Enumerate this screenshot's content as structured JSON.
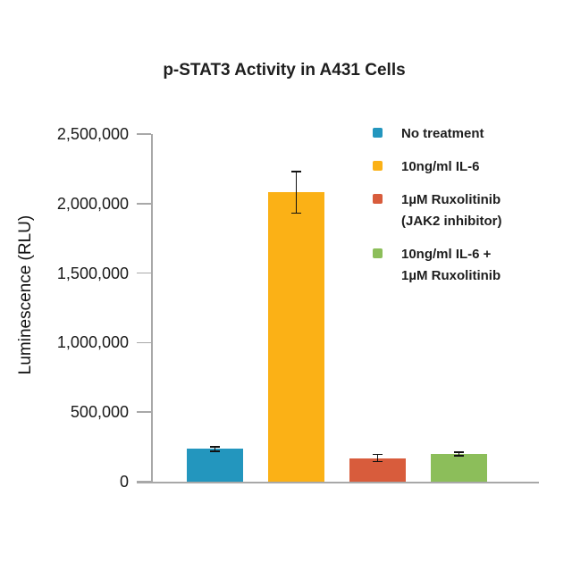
{
  "chart_data": {
    "type": "bar",
    "title": "p-STAT3 Activity in A431 Cells",
    "xlabel": "",
    "ylabel": "Luminescence (RLU)",
    "ylim": [
      0,
      2500000
    ],
    "yticks": [
      0,
      500000,
      1000000,
      1500000,
      2000000,
      2500000
    ],
    "ytick_labels": [
      "0",
      "500,000",
      "1,000,000",
      "1,500,000",
      "2,000,000",
      "2,500,000"
    ],
    "grid": false,
    "legend_position": "upper right",
    "categories": [
      "No treatment",
      "10ng/ml IL-6",
      "1µM Ruxolitinib (JAK2 inhibitor)",
      "10ng/ml IL-6 + 1µM Ruxolitinib"
    ],
    "bars": [
      {
        "id": "no-treatment",
        "legend_lines": [
          "No treatment"
        ],
        "value": 235000,
        "error": 15000,
        "color": "#2396be"
      },
      {
        "id": "il6",
        "legend_lines": [
          "10ng/ml IL-6"
        ],
        "value": 2080000,
        "error": 150000,
        "color": "#fbb116"
      },
      {
        "id": "ruxolitinib",
        "legend_lines": [
          "1µM Ruxolitinib",
          "(JAK2 inhibitor)"
        ],
        "value": 170000,
        "error": 25000,
        "color": "#d85c3c"
      },
      {
        "id": "il6-ruxolitinib",
        "legend_lines": [
          "10ng/ml IL-6 +",
          "1µM Ruxolitinib"
        ],
        "value": 200000,
        "error": 12000,
        "color": "#8cbe5a"
      }
    ],
    "colors": {
      "axis": "#a8a8a8",
      "error_bar": "#111111",
      "text": "#1e1e1e"
    }
  }
}
